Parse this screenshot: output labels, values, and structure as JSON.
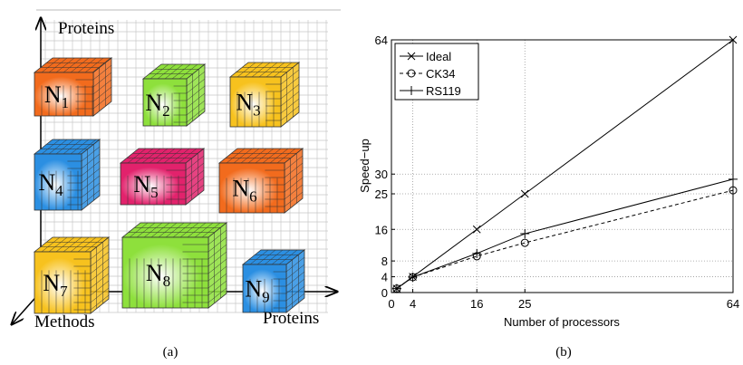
{
  "diagram": {
    "axis_labels": {
      "up": "Proteins",
      "left": "Methods",
      "right": "Proteins"
    },
    "nodes": [
      {
        "label": "N",
        "subscript": "1",
        "color": "#f26b1d"
      },
      {
        "label": "N",
        "subscript": "2",
        "color": "#8ee03c"
      },
      {
        "label": "N",
        "subscript": "3",
        "color": "#f7c21e"
      },
      {
        "label": "N",
        "subscript": "4",
        "color": "#2b8fe2"
      },
      {
        "label": "N",
        "subscript": "5",
        "color": "#e2226c"
      },
      {
        "label": "N",
        "subscript": "6",
        "color": "#f26b1d"
      },
      {
        "label": "N",
        "subscript": "7",
        "color": "#f7c21e"
      },
      {
        "label": "N",
        "subscript": "8",
        "color": "#8ee03c"
      },
      {
        "label": "N",
        "subscript": "9",
        "color": "#2b8fe2"
      }
    ],
    "caption": "(a)"
  },
  "chart_data": {
    "type": "line",
    "x": [
      1,
      4,
      16,
      25,
      64
    ],
    "series": [
      {
        "name": "Ideal",
        "color": "#000000",
        "marker": "x",
        "dash": "solid",
        "values": [
          1,
          4,
          16,
          25,
          64
        ]
      },
      {
        "name": "CK34",
        "color": "#000000",
        "marker": "o",
        "dash": "dashed",
        "values": [
          1,
          3.9,
          9.2,
          12.6,
          25.9
        ]
      },
      {
        "name": "RS119",
        "color": "#000000",
        "marker": "+",
        "dash": "solid",
        "values": [
          1,
          3.9,
          9.9,
          14.9,
          28.7
        ]
      }
    ],
    "xlabel": "Number of processors",
    "ylabel": "Speed−up",
    "xlim": [
      0,
      64
    ],
    "ylim": [
      0,
      64
    ],
    "xticks": [
      0,
      4,
      16,
      25,
      64
    ],
    "yticks": [
      0,
      4,
      8,
      16,
      25,
      30,
      64
    ],
    "grid": true,
    "legend": "upper left",
    "caption": "(b)"
  }
}
